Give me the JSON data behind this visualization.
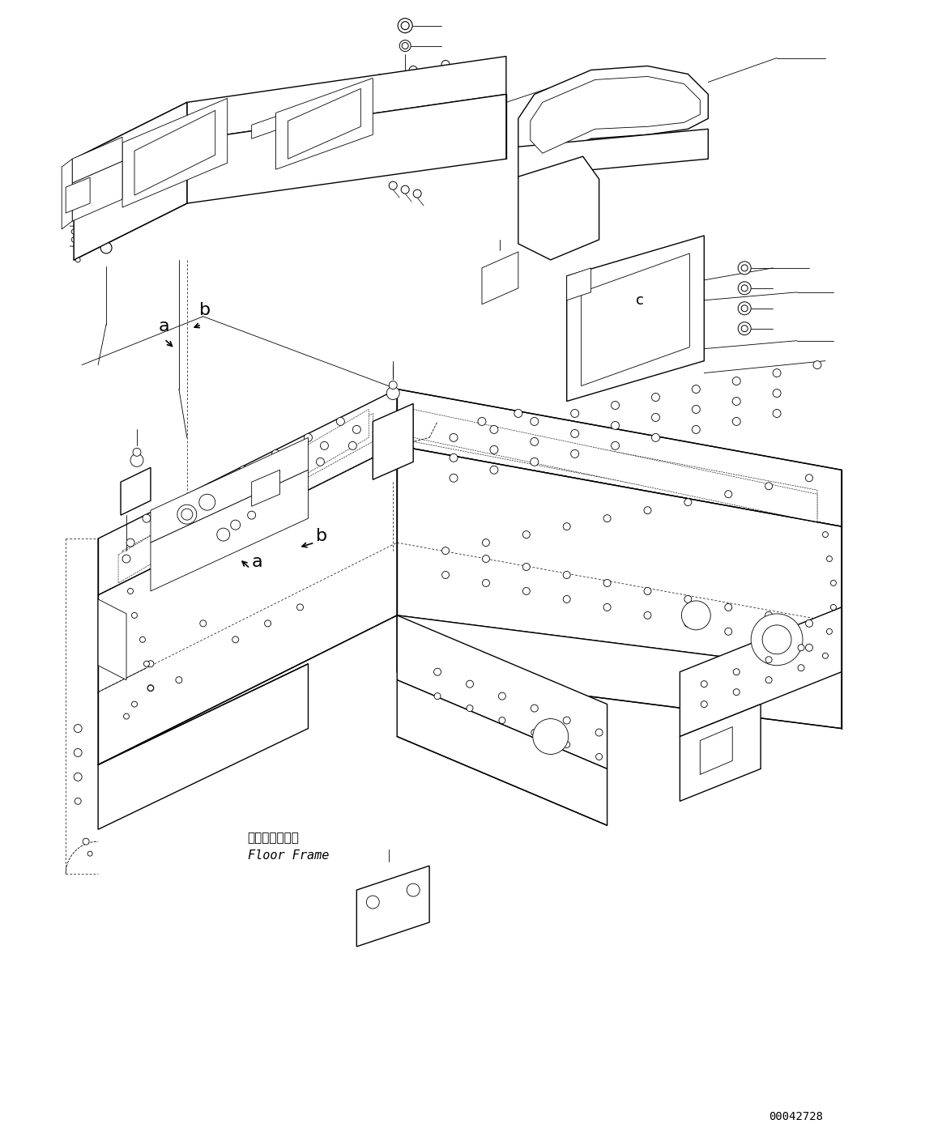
{
  "figure_id": "00042728",
  "bg_color": "#ffffff",
  "lc": "#000000",
  "figsize": [
    11.63,
    14.09
  ],
  "dpi": 100,
  "floor_frame_jp": "フロアフレーム",
  "floor_frame_en": "Floor Frame"
}
